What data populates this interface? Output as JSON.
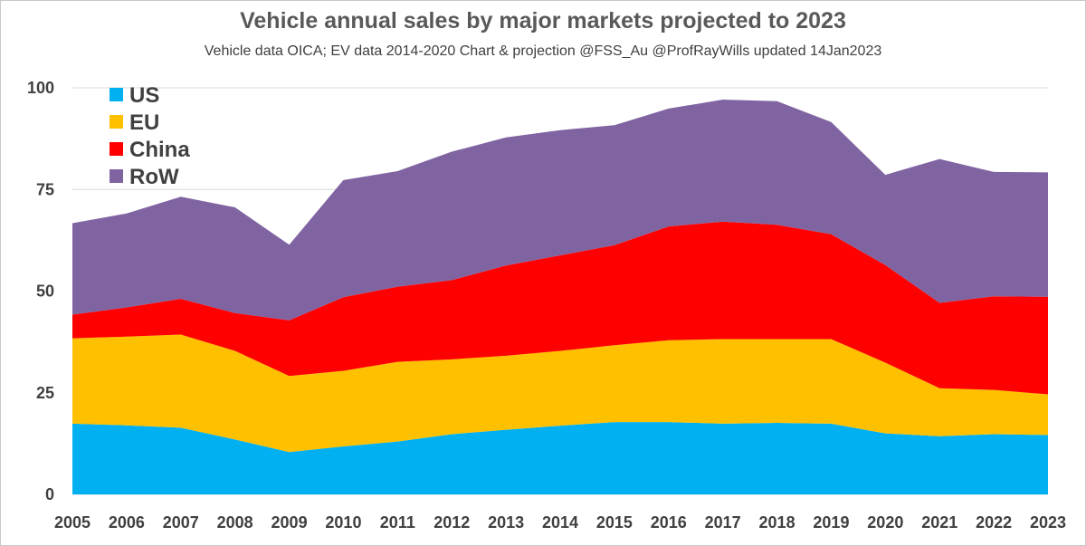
{
  "chart_data": {
    "type": "area",
    "stacked": true,
    "title": "Vehicle annual sales by major markets projected to 2023",
    "subtitle": "Vehicle data OICA; EV data 2014-2020  Chart & projection @FSS_Au @ProfRayWills updated 14Jan2023",
    "xlabel": "",
    "ylabel": "",
    "ylim": [
      0,
      100
    ],
    "yticks": [
      0,
      25,
      50,
      75,
      100
    ],
    "grid": true,
    "legend": "top-left",
    "x": [
      "2005",
      "2006",
      "2007",
      "2008",
      "2009",
      "2010",
      "2011",
      "2012",
      "2013",
      "2014",
      "2015",
      "2016",
      "2017",
      "2018",
      "2019",
      "2020",
      "2021",
      "2022",
      "2023"
    ],
    "series": [
      {
        "name": "US",
        "color": "#00b0f0",
        "values": [
          17.4,
          17.0,
          16.4,
          13.5,
          10.4,
          11.8,
          13.0,
          14.8,
          15.9,
          16.9,
          17.8,
          17.8,
          17.4,
          17.6,
          17.4,
          15.0,
          14.3,
          14.8,
          14.6
        ]
      },
      {
        "name": "EU",
        "color": "#ffc000",
        "values": [
          21.0,
          21.8,
          22.9,
          21.8,
          18.7,
          18.6,
          19.6,
          18.4,
          18.2,
          18.4,
          18.9,
          20.1,
          20.8,
          20.6,
          20.8,
          17.4,
          11.8,
          10.9,
          10.0
        ]
      },
      {
        "name": "China",
        "color": "#ff0000",
        "values": [
          5.8,
          7.2,
          8.8,
          9.3,
          13.7,
          18.1,
          18.5,
          19.5,
          22.2,
          23.5,
          24.6,
          28.0,
          28.9,
          28.1,
          25.8,
          24.0,
          21.0,
          23.0,
          24.0
        ]
      },
      {
        "name": "RoW",
        "color": "#8064a2",
        "values": [
          22.5,
          23.1,
          25.1,
          26.0,
          18.6,
          28.8,
          28.4,
          31.6,
          31.5,
          30.8,
          29.5,
          29.0,
          30.0,
          30.4,
          27.6,
          22.2,
          35.4,
          30.6,
          30.6
        ]
      }
    ]
  }
}
